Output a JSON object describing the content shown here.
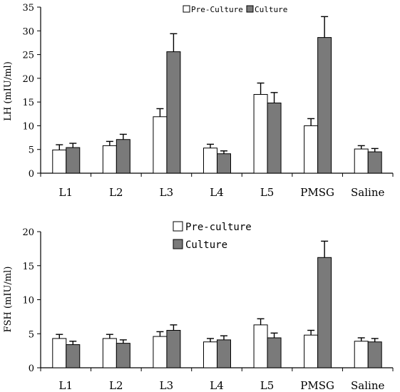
{
  "chart_data": [
    {
      "type": "bar",
      "title": "",
      "xlabel": "",
      "ylabel": "LH (mIU/ml)",
      "ylim": [
        0,
        35
      ],
      "yticks": [
        0,
        5,
        10,
        15,
        20,
        25,
        30,
        35
      ],
      "categories": [
        "L1",
        "L2",
        "L3",
        "L4",
        "L5",
        "PMSG",
        "Saline"
      ],
      "series": [
        {
          "name": "Pre-Culture",
          "color": "#ffffff",
          "values": [
            4.9,
            5.8,
            11.9,
            5.3,
            16.6,
            10.0,
            5.1
          ],
          "errors": [
            1.1,
            0.9,
            1.7,
            0.8,
            2.4,
            1.5,
            0.7
          ]
        },
        {
          "name": "Culture",
          "color": "#7a7a7a",
          "values": [
            5.4,
            7.1,
            25.6,
            4.1,
            14.8,
            28.6,
            4.5
          ],
          "errors": [
            0.9,
            1.1,
            3.8,
            0.6,
            2.2,
            4.4,
            0.7
          ]
        }
      ],
      "legend": "top-right",
      "grid": false
    },
    {
      "type": "bar",
      "title": "",
      "xlabel": "",
      "ylabel": "FSH (mIU/ml)",
      "ylim": [
        0,
        20
      ],
      "yticks": [
        0,
        5,
        10,
        15,
        20
      ],
      "categories": [
        "L1",
        "L2",
        "L3",
        "L4",
        "L5",
        "PMSG",
        "Saline"
      ],
      "series": [
        {
          "name": "Pre-culture",
          "color": "#ffffff",
          "values": [
            4.3,
            4.3,
            4.6,
            3.8,
            6.3,
            4.8,
            3.9
          ],
          "errors": [
            0.6,
            0.6,
            0.7,
            0.5,
            0.9,
            0.7,
            0.5
          ]
        },
        {
          "name": "Culture",
          "color": "#7a7a7a",
          "values": [
            3.4,
            3.6,
            5.5,
            4.1,
            4.4,
            16.2,
            3.8
          ],
          "errors": [
            0.5,
            0.5,
            0.8,
            0.6,
            0.7,
            2.4,
            0.5
          ]
        }
      ],
      "legend": "top-center",
      "grid": false
    }
  ]
}
